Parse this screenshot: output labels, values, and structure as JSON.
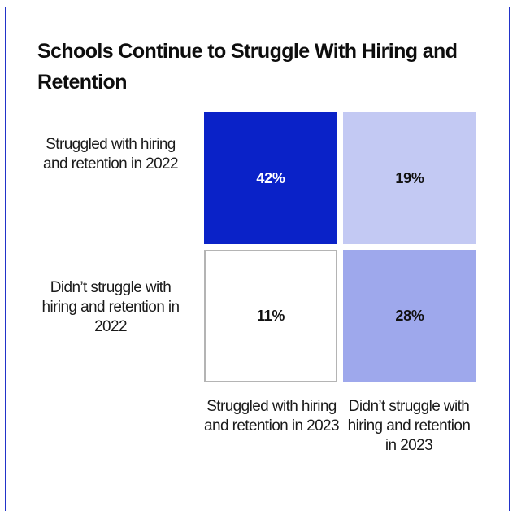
{
  "chart_data": {
    "type": "heatmap",
    "title": "Schools Continue to Struggle With Hiring and Retention",
    "row_labels": [
      "Struggled with hiring and retention in 2022",
      "Didn’t struggle with hiring and retention in 2022"
    ],
    "col_labels": [
      "Struggled with hiring and retention in 2023",
      "Didn’t struggle with hiring and retention in 2023"
    ],
    "values": [
      [
        42,
        19
      ],
      [
        11,
        28
      ]
    ],
    "value_labels": [
      [
        "42%",
        "19%"
      ],
      [
        "11%",
        "28%"
      ]
    ],
    "unit": "%",
    "colors": [
      [
        "#0a22c8",
        "#c3c9f3"
      ],
      [
        "#ffffff",
        "#9ea8ec"
      ]
    ],
    "text_colors": [
      [
        "#ffffff",
        "#111111"
      ],
      [
        "#111111",
        "#111111"
      ]
    ]
  }
}
